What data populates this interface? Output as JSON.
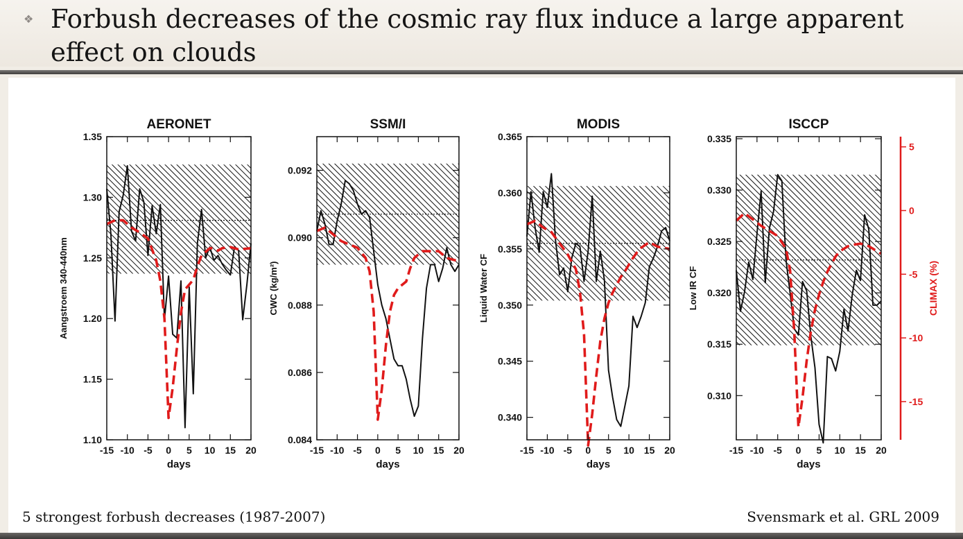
{
  "slide": {
    "bullet_glyph": "❖",
    "title": "Forbush decreases of the cosmic ray flux induce a large apparent effect on clouds",
    "footer_left": "5 strongest forbush decreases (1987-2007)",
    "footer_right": "Svensmark et al. GRL 2009"
  },
  "chart_data": [
    {
      "type": "line",
      "title": "AERONET",
      "xlabel": "days",
      "ylabel": "Aangstroem 340-440nm",
      "xlim": [
        -15,
        20
      ],
      "ylim": [
        1.1,
        1.35
      ],
      "x_ticks": [
        -15,
        -10,
        -5,
        0,
        5,
        10,
        15,
        20
      ],
      "y_ticks": [
        1.1,
        1.15,
        1.2,
        1.25,
        1.3,
        1.35
      ],
      "y_tick_labels": [
        "1.10",
        "1.15",
        "1.20",
        "1.25",
        "1.30",
        "1.35"
      ],
      "hatched_band": [
        1.237,
        1.327
      ],
      "mean_line": 1.281,
      "series": [
        {
          "style": "solid-black",
          "x": [
            -15,
            -14,
            -13,
            -12,
            -11,
            -10,
            -9,
            -8,
            -7,
            -6,
            -5,
            -4,
            -3,
            -2,
            -1,
            0,
            1,
            2,
            3,
            4,
            5,
            6,
            7,
            8,
            9,
            10,
            11,
            12,
            13,
            14,
            15,
            16,
            17,
            18,
            19,
            20
          ],
          "y": [
            1.307,
            1.27,
            1.198,
            1.288,
            1.302,
            1.326,
            1.272,
            1.264,
            1.307,
            1.296,
            1.252,
            1.293,
            1.27,
            1.294,
            1.199,
            1.235,
            1.187,
            1.184,
            1.231,
            1.11,
            1.226,
            1.138,
            1.262,
            1.29,
            1.25,
            1.259,
            1.248,
            1.252,
            1.245,
            1.24,
            1.236,
            1.259,
            1.256,
            1.199,
            1.228,
            1.262
          ]
        },
        {
          "style": "dashed-red",
          "x": [
            -15,
            -13,
            -11,
            -9,
            -7,
            -5,
            -3,
            -2,
            -1,
            0,
            1,
            2,
            3,
            4,
            5,
            6,
            7,
            8,
            9,
            10,
            11,
            12,
            13,
            15,
            17,
            20
          ],
          "y": [
            1.278,
            1.281,
            1.281,
            1.275,
            1.271,
            1.266,
            1.248,
            1.231,
            1.2,
            1.118,
            1.143,
            1.175,
            1.205,
            1.224,
            1.228,
            1.232,
            1.243,
            1.252,
            1.255,
            1.258,
            1.258,
            1.256,
            1.258,
            1.259,
            1.257,
            1.258
          ]
        }
      ]
    },
    {
      "type": "line",
      "title": "SSM/I",
      "xlabel": "days",
      "ylabel": "CWC (kg/m²)",
      "xlim": [
        -15,
        20
      ],
      "ylim": [
        0.084,
        0.093
      ],
      "x_ticks": [
        -15,
        -10,
        -5,
        0,
        5,
        10,
        15,
        20
      ],
      "y_ticks": [
        0.084,
        0.086,
        0.088,
        0.09,
        0.092
      ],
      "y_tick_labels": [
        "0.084",
        "0.086",
        "0.088",
        "0.090",
        "0.092"
      ],
      "hatched_band": [
        0.0892,
        0.0922
      ],
      "mean_line": 0.0907,
      "series": [
        {
          "style": "solid-black",
          "x": [
            -15,
            -14,
            -13,
            -12,
            -11,
            -10,
            -9,
            -8,
            -7,
            -6,
            -5,
            -4,
            -3,
            -2,
            -1,
            0,
            1,
            2,
            3,
            4,
            5,
            6,
            7,
            8,
            9,
            10,
            11,
            12,
            13,
            14,
            15,
            16,
            17,
            18,
            19,
            20
          ],
          "y": [
            0.0902,
            0.0908,
            0.0904,
            0.0898,
            0.0898,
            0.0905,
            0.091,
            0.0917,
            0.0916,
            0.0914,
            0.091,
            0.0907,
            0.0908,
            0.0906,
            0.0896,
            0.0886,
            0.088,
            0.0876,
            0.087,
            0.0864,
            0.0862,
            0.0862,
            0.0858,
            0.0852,
            0.0847,
            0.085,
            0.087,
            0.0885,
            0.0892,
            0.0892,
            0.0887,
            0.0891,
            0.0897,
            0.0892,
            0.089,
            0.0892
          ]
        },
        {
          "style": "dashed-red",
          "x": [
            -15,
            -13,
            -11,
            -9,
            -7,
            -5,
            -3,
            -2,
            -1,
            0,
            1,
            2,
            3,
            4,
            5,
            6,
            7,
            8,
            9,
            10,
            11,
            12,
            13,
            15,
            17,
            20
          ],
          "y": [
            0.0902,
            0.0903,
            0.0901,
            0.0899,
            0.0898,
            0.0897,
            0.0894,
            0.089,
            0.0878,
            0.0846,
            0.0855,
            0.0868,
            0.0878,
            0.0883,
            0.0885,
            0.0886,
            0.0887,
            0.0891,
            0.0894,
            0.0895,
            0.0896,
            0.0896,
            0.0896,
            0.0896,
            0.0894,
            0.0893
          ]
        }
      ]
    },
    {
      "type": "line",
      "title": "MODIS",
      "xlabel": "days",
      "ylabel": "Liquid Water CF",
      "xlim": [
        -15,
        20
      ],
      "ylim": [
        0.338,
        0.365
      ],
      "x_ticks": [
        -15,
        -10,
        -5,
        0,
        5,
        10,
        15,
        20
      ],
      "y_ticks": [
        0.34,
        0.345,
        0.35,
        0.355,
        0.36,
        0.365
      ],
      "y_tick_labels": [
        "0.340",
        "0.345",
        "0.350",
        "0.355",
        "0.360",
        "0.365"
      ],
      "hatched_band": [
        0.3504,
        0.3606
      ],
      "mean_line": 0.3555,
      "series": [
        {
          "style": "solid-black",
          "x": [
            -15,
            -14,
            -13,
            -12,
            -11,
            -10,
            -9,
            -8,
            -7,
            -6,
            -5,
            -4,
            -3,
            -2,
            -1,
            0,
            1,
            2,
            3,
            4,
            5,
            6,
            7,
            8,
            9,
            10,
            11,
            12,
            13,
            14,
            15,
            16,
            17,
            18,
            19,
            20
          ],
          "y": [
            0.3561,
            0.3601,
            0.3569,
            0.3547,
            0.3601,
            0.3587,
            0.3617,
            0.3558,
            0.3527,
            0.3533,
            0.3512,
            0.3542,
            0.3555,
            0.3552,
            0.3521,
            0.3548,
            0.3597,
            0.3521,
            0.3548,
            0.3522,
            0.3442,
            0.3418,
            0.3398,
            0.3392,
            0.341,
            0.3428,
            0.349,
            0.348,
            0.349,
            0.3502,
            0.3534,
            0.3542,
            0.3552,
            0.3566,
            0.3569,
            0.3557
          ]
        },
        {
          "style": "dashed-red",
          "x": [
            -15,
            -13,
            -11,
            -9,
            -7,
            -5,
            -3,
            -2,
            -1,
            0,
            1,
            2,
            3,
            4,
            5,
            6,
            7,
            8,
            9,
            10,
            11,
            12,
            13,
            15,
            17,
            20
          ],
          "y": [
            0.3572,
            0.3575,
            0.3569,
            0.3565,
            0.3555,
            0.3545,
            0.3532,
            0.3512,
            0.3474,
            0.3375,
            0.3403,
            0.3437,
            0.3468,
            0.3488,
            0.3502,
            0.3511,
            0.3518,
            0.3525,
            0.353,
            0.3536,
            0.3542,
            0.3547,
            0.3551,
            0.3556,
            0.3552,
            0.355
          ]
        }
      ]
    },
    {
      "type": "line",
      "title": "ISCCP",
      "xlabel": "days",
      "ylabel": "Low IR CF",
      "ylabel_right": "CLIMAX (%)",
      "xlim": [
        -15,
        20
      ],
      "ylim": [
        0.3057,
        0.3352
      ],
      "y2lim": [
        -18.0,
        5.8
      ],
      "x_ticks": [
        -15,
        -10,
        -5,
        0,
        5,
        10,
        15,
        20
      ],
      "y_ticks": [
        0.31,
        0.315,
        0.32,
        0.325,
        0.33,
        0.335
      ],
      "y_tick_labels": [
        "0.310",
        "0.315",
        "0.320",
        "0.325",
        "0.330",
        "0.335"
      ],
      "y2_ticks": [
        5,
        0,
        -5,
        -10,
        -15
      ],
      "y2_tick_labels": [
        "5",
        "0",
        "-5",
        "-10",
        "-15"
      ],
      "hatched_band": [
        0.3149,
        0.3315
      ],
      "mean_line": 0.3232,
      "series": [
        {
          "style": "solid-black",
          "x": [
            -15,
            -14,
            -13,
            -12,
            -11,
            -10,
            -9,
            -8,
            -7,
            -6,
            -5,
            -4,
            -3,
            -2,
            -1,
            0,
            1,
            2,
            3,
            4,
            5,
            6,
            7,
            8,
            9,
            10,
            11,
            12,
            13,
            14,
            15,
            16,
            17,
            18,
            19,
            20
          ],
          "y": [
            0.3222,
            0.3182,
            0.3201,
            0.323,
            0.3213,
            0.3258,
            0.3299,
            0.321,
            0.3263,
            0.3279,
            0.3315,
            0.3309,
            0.3232,
            0.32,
            0.3165,
            0.3159,
            0.3211,
            0.3202,
            0.3158,
            0.3127,
            0.3072,
            0.3054,
            0.3138,
            0.3136,
            0.3124,
            0.3143,
            0.3184,
            0.3163,
            0.3198,
            0.3222,
            0.3212,
            0.3276,
            0.3262,
            0.3188,
            0.3188,
            0.3192
          ]
        },
        {
          "style": "dashed-red",
          "axis": "right",
          "x": [
            -15,
            -13,
            -11,
            -9,
            -7,
            -5,
            -3,
            -2,
            -1,
            0,
            1,
            2,
            3,
            4,
            5,
            6,
            7,
            8,
            9,
            10,
            11,
            12,
            13,
            15,
            17,
            20
          ],
          "y": [
            -0.8,
            -0.2,
            -0.7,
            -1.2,
            -1.6,
            -2.0,
            -3.0,
            -4.7,
            -9.5,
            -17.0,
            -14.7,
            -11.8,
            -9.5,
            -7.8,
            -6.6,
            -5.6,
            -4.8,
            -4.2,
            -3.6,
            -3.2,
            -3.0,
            -2.8,
            -2.7,
            -2.6,
            -2.8,
            -3.4
          ]
        }
      ]
    }
  ]
}
